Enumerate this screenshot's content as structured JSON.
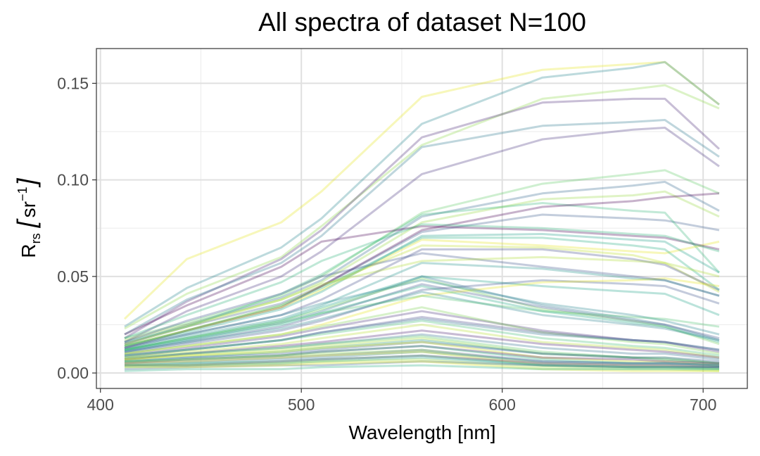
{
  "chart_data": {
    "type": "line",
    "title": "All spectra of dataset N=100",
    "xlabel": "Wavelength [nm]",
    "ylabel": {
      "main": "R",
      "sub": "rs",
      "bracket_open": "[",
      "unit": "sr",
      "sup": "−1",
      "bracket_close": "]"
    },
    "xlim": [
      398,
      722
    ],
    "ylim": [
      -0.008,
      0.168
    ],
    "x_ticks": [
      400,
      500,
      600,
      700
    ],
    "x_tick_labels": [
      "400",
      "500",
      "600",
      "700"
    ],
    "y_ticks": [
      0,
      0.05,
      0.1,
      0.15
    ],
    "y_tick_labels": [
      "0.00",
      "0.05",
      "0.10",
      "0.15"
    ],
    "grid": true,
    "line_opacity": 0.3,
    "x": [
      412,
      443,
      490,
      510,
      560,
      620,
      665,
      681,
      708
    ],
    "series": [
      {
        "color": "#e5e419",
        "values": [
          0.028,
          0.059,
          0.078,
          0.094,
          0.143,
          0.157,
          0.16,
          0.161,
          0.139
        ]
      },
      {
        "color": "#25858e",
        "values": [
          0.024,
          0.044,
          0.065,
          0.08,
          0.129,
          0.153,
          0.158,
          0.161,
          0.139
        ]
      },
      {
        "color": "#8bd646",
        "values": [
          0.023,
          0.041,
          0.06,
          0.076,
          0.118,
          0.142,
          0.147,
          0.149,
          0.137
        ]
      },
      {
        "color": "#482878",
        "values": [
          0.018,
          0.037,
          0.059,
          0.074,
          0.122,
          0.14,
          0.142,
          0.142,
          0.116
        ]
      },
      {
        "color": "#2a788e",
        "values": [
          0.02,
          0.038,
          0.057,
          0.071,
          0.117,
          0.128,
          0.13,
          0.131,
          0.112
        ]
      },
      {
        "color": "#46327e",
        "values": [
          0.016,
          0.032,
          0.05,
          0.063,
          0.103,
          0.121,
          0.126,
          0.127,
          0.107
        ]
      },
      {
        "color": "#5ec962",
        "values": [
          0.018,
          0.026,
          0.04,
          0.05,
          0.083,
          0.098,
          0.103,
          0.105,
          0.093
        ]
      },
      {
        "color": "#31688e",
        "values": [
          0.015,
          0.025,
          0.039,
          0.048,
          0.081,
          0.093,
          0.097,
          0.099,
          0.084
        ]
      },
      {
        "color": "#95d840",
        "values": [
          0.017,
          0.025,
          0.038,
          0.047,
          0.078,
          0.09,
          0.092,
          0.094,
          0.081
        ]
      },
      {
        "color": "#38598c",
        "values": [
          0.015,
          0.024,
          0.036,
          0.045,
          0.073,
          0.082,
          0.08,
          0.079,
          0.074
        ]
      },
      {
        "color": "#35b779",
        "values": [
          0.016,
          0.024,
          0.041,
          0.051,
          0.082,
          0.088,
          0.084,
          0.083,
          0.052
        ]
      },
      {
        "color": "#bddf26",
        "values": [
          0.014,
          0.022,
          0.035,
          0.045,
          0.066,
          0.065,
          0.061,
          0.057,
          0.042
        ]
      },
      {
        "color": "#440154",
        "values": [
          0.013,
          0.022,
          0.034,
          0.045,
          0.074,
          0.086,
          0.089,
          0.091,
          0.093
        ]
      },
      {
        "color": "#e5e419",
        "values": [
          0.014,
          0.022,
          0.034,
          0.043,
          0.069,
          0.066,
          0.063,
          0.062,
          0.068
        ]
      },
      {
        "color": "#1f9e89",
        "values": [
          0.014,
          0.021,
          0.033,
          0.042,
          0.071,
          0.072,
          0.069,
          0.068,
          0.052
        ]
      },
      {
        "color": "#3e4a89",
        "values": [
          0.013,
          0.02,
          0.03,
          0.038,
          0.064,
          0.064,
          0.059,
          0.056,
          0.043
        ]
      },
      {
        "color": "#26ad81",
        "values": [
          0.014,
          0.022,
          0.035,
          0.044,
          0.07,
          0.07,
          0.066,
          0.064,
          0.043
        ]
      },
      {
        "color": "#21918c",
        "values": [
          0.012,
          0.019,
          0.028,
          0.035,
          0.057,
          0.054,
          0.049,
          0.048,
          0.04
        ]
      },
      {
        "color": "#2c728e",
        "values": [
          0.011,
          0.017,
          0.026,
          0.032,
          0.05,
          0.035,
          0.028,
          0.025,
          0.017
        ]
      },
      {
        "color": "#6ece58",
        "values": [
          0.012,
          0.018,
          0.027,
          0.033,
          0.049,
          0.033,
          0.027,
          0.024,
          0.015
        ]
      },
      {
        "color": "#3b528b",
        "values": [
          0.011,
          0.016,
          0.024,
          0.03,
          0.046,
          0.034,
          0.027,
          0.025,
          0.018
        ]
      },
      {
        "color": "#1fa188",
        "values": [
          0.012,
          0.018,
          0.027,
          0.034,
          0.05,
          0.045,
          0.042,
          0.041,
          0.03
        ]
      },
      {
        "color": "#3b528b",
        "values": [
          0.01,
          0.015,
          0.022,
          0.027,
          0.043,
          0.048,
          0.046,
          0.045,
          0.036
        ]
      },
      {
        "color": "#e5e419",
        "values": [
          0.01,
          0.014,
          0.02,
          0.025,
          0.04,
          0.047,
          0.048,
          0.049,
          0.045
        ]
      },
      {
        "color": "#22a884",
        "values": [
          0.012,
          0.017,
          0.025,
          0.031,
          0.045,
          0.032,
          0.026,
          0.024,
          0.016
        ]
      },
      {
        "color": "#27808e",
        "values": [
          0.011,
          0.016,
          0.023,
          0.028,
          0.042,
          0.03,
          0.025,
          0.023,
          0.017
        ]
      },
      {
        "color": "#472d7b",
        "values": [
          0.009,
          0.013,
          0.019,
          0.023,
          0.032,
          0.022,
          0.017,
          0.016,
          0.011
        ]
      },
      {
        "color": "#7ad151",
        "values": [
          0.01,
          0.014,
          0.02,
          0.024,
          0.034,
          0.021,
          0.016,
          0.015,
          0.01
        ]
      },
      {
        "color": "#414487",
        "values": [
          0.008,
          0.012,
          0.017,
          0.021,
          0.029,
          0.021,
          0.017,
          0.016,
          0.012
        ]
      },
      {
        "color": "#2d708e",
        "values": [
          0.009,
          0.012,
          0.017,
          0.021,
          0.028,
          0.02,
          0.017,
          0.016,
          0.012
        ]
      },
      {
        "color": "#3fbc73",
        "values": [
          0.009,
          0.012,
          0.017,
          0.02,
          0.027,
          0.018,
          0.014,
          0.013,
          0.009
        ]
      },
      {
        "color": "#b5de2b",
        "values": [
          0.008,
          0.011,
          0.015,
          0.018,
          0.025,
          0.016,
          0.013,
          0.012,
          0.008
        ]
      },
      {
        "color": "#481f70",
        "values": [
          0.007,
          0.01,
          0.014,
          0.016,
          0.022,
          0.015,
          0.012,
          0.011,
          0.008
        ]
      },
      {
        "color": "#2e6f8e",
        "values": [
          0.007,
          0.01,
          0.013,
          0.015,
          0.02,
          0.013,
          0.01,
          0.01,
          0.007
        ]
      },
      {
        "color": "#5ac864",
        "values": [
          0.008,
          0.01,
          0.013,
          0.015,
          0.019,
          0.011,
          0.008,
          0.008,
          0.005
        ]
      },
      {
        "color": "#a2da37",
        "values": [
          0.007,
          0.009,
          0.012,
          0.014,
          0.018,
          0.01,
          0.008,
          0.007,
          0.005
        ]
      },
      {
        "color": "#20938c",
        "values": [
          0.006,
          0.008,
          0.011,
          0.013,
          0.017,
          0.01,
          0.008,
          0.007,
          0.005
        ]
      },
      {
        "color": "#365d8d",
        "values": [
          0.006,
          0.008,
          0.01,
          0.012,
          0.016,
          0.01,
          0.008,
          0.008,
          0.006
        ]
      },
      {
        "color": "#d2e21b",
        "values": [
          0.007,
          0.009,
          0.011,
          0.013,
          0.016,
          0.008,
          0.006,
          0.006,
          0.004
        ]
      },
      {
        "color": "#48186a",
        "values": [
          0.005,
          0.007,
          0.009,
          0.011,
          0.014,
          0.008,
          0.007,
          0.006,
          0.005
        ]
      },
      {
        "color": "#29af7f",
        "values": [
          0.006,
          0.007,
          0.009,
          0.011,
          0.014,
          0.007,
          0.005,
          0.005,
          0.004
        ]
      },
      {
        "color": "#3e4c8a",
        "values": [
          0.005,
          0.006,
          0.008,
          0.009,
          0.012,
          0.006,
          0.005,
          0.005,
          0.004
        ]
      },
      {
        "color": "#84d44b",
        "values": [
          0.006,
          0.007,
          0.009,
          0.01,
          0.012,
          0.005,
          0.004,
          0.004,
          0.003
        ]
      },
      {
        "color": "#2b758e",
        "values": [
          0.004,
          0.005,
          0.007,
          0.008,
          0.011,
          0.006,
          0.005,
          0.005,
          0.004
        ]
      },
      {
        "color": "#c8e020",
        "values": [
          0.005,
          0.006,
          0.008,
          0.009,
          0.011,
          0.004,
          0.003,
          0.003,
          0.002
        ]
      },
      {
        "color": "#470e61",
        "values": [
          0.004,
          0.004,
          0.006,
          0.007,
          0.009,
          0.005,
          0.004,
          0.004,
          0.003
        ]
      },
      {
        "color": "#34b679",
        "values": [
          0.004,
          0.005,
          0.006,
          0.007,
          0.009,
          0.004,
          0.003,
          0.003,
          0.002
        ]
      },
      {
        "color": "#1f998a",
        "values": [
          0.003,
          0.004,
          0.005,
          0.006,
          0.008,
          0.004,
          0.003,
          0.003,
          0.003
        ]
      },
      {
        "color": "#9dd93b",
        "values": [
          0.004,
          0.004,
          0.005,
          0.006,
          0.007,
          0.003,
          0.002,
          0.002,
          0.001
        ]
      },
      {
        "color": "#355f8d",
        "values": [
          0.002,
          0.003,
          0.004,
          0.004,
          0.006,
          0.004,
          0.003,
          0.003,
          0.003
        ]
      },
      {
        "color": "#dde318",
        "values": [
          0.003,
          0.003,
          0.004,
          0.005,
          0.006,
          0.002,
          0.001,
          0.001,
          0.001
        ]
      },
      {
        "color": "#25ab82",
        "values": [
          0.001,
          0.002,
          0.002,
          0.003,
          0.004,
          0.002,
          0.002,
          0.002,
          0.002
        ]
      },
      {
        "color": "#440154",
        "values": [
          0.02,
          0.035,
          0.055,
          0.068,
          0.076,
          0.074,
          0.071,
          0.07,
          0.064
        ]
      },
      {
        "color": "#2fb47c",
        "values": [
          0.018,
          0.03,
          0.047,
          0.058,
          0.077,
          0.075,
          0.072,
          0.071,
          0.063
        ]
      },
      {
        "color": "#3a548c",
        "values": [
          0.016,
          0.027,
          0.041,
          0.05,
          0.062,
          0.055,
          0.05,
          0.048,
          0.04
        ]
      },
      {
        "color": "#addc30",
        "values": [
          0.015,
          0.024,
          0.038,
          0.046,
          0.058,
          0.06,
          0.058,
          0.057,
          0.05
        ]
      },
      {
        "color": "#24868e",
        "values": [
          0.013,
          0.02,
          0.03,
          0.036,
          0.048,
          0.036,
          0.03,
          0.027,
          0.02
        ]
      },
      {
        "color": "#4ac16d",
        "values": [
          0.012,
          0.018,
          0.026,
          0.031,
          0.04,
          0.032,
          0.029,
          0.028,
          0.024
        ]
      }
    ]
  }
}
